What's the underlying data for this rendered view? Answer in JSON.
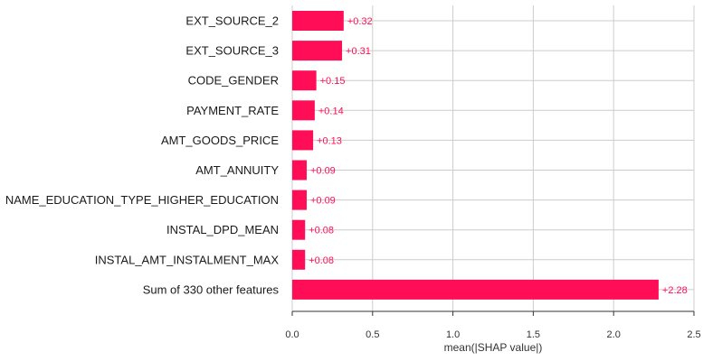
{
  "chart_data": {
    "type": "bar",
    "orientation": "horizontal",
    "xlabel": "mean(|SHAP value|)",
    "ylabel": "",
    "xlim": [
      0,
      2.5
    ],
    "x_ticks": [
      "0.0",
      "0.5",
      "1.0",
      "1.5",
      "2.0",
      "2.5"
    ],
    "x_tick_values": [
      0,
      0.5,
      1.0,
      1.5,
      2.0,
      2.5
    ],
    "grid": true,
    "bar_color": "#ff0d57",
    "value_label_color": "#ff0d57",
    "categories": [
      "EXT_SOURCE_2",
      "EXT_SOURCE_3",
      "CODE_GENDER",
      "PAYMENT_RATE",
      "AMT_GOODS_PRICE",
      "AMT_ANNUITY",
      "NAME_EDUCATION_TYPE_HIGHER_EDUCATION",
      "INSTAL_DPD_MEAN",
      "INSTAL_AMT_INSTALMENT_MAX",
      "Sum of 330 other features"
    ],
    "values": [
      0.32,
      0.31,
      0.15,
      0.14,
      0.13,
      0.09,
      0.09,
      0.08,
      0.08,
      2.28
    ],
    "value_labels": [
      "+0.32",
      "+0.31",
      "+0.15",
      "+0.14",
      "+0.13",
      "+0.09",
      "+0.09",
      "+0.08",
      "+0.08",
      "+2.28"
    ]
  }
}
